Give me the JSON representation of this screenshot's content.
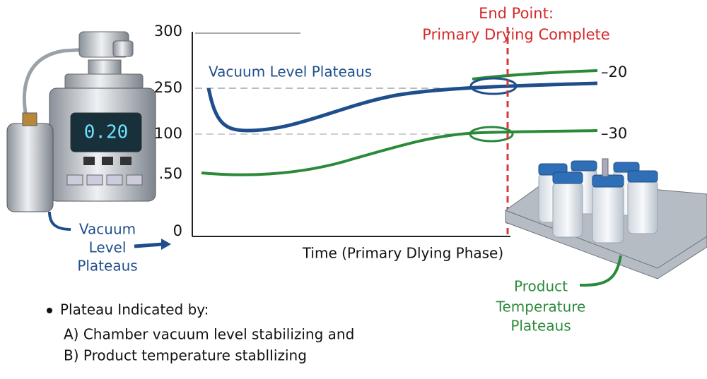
{
  "axis": {
    "y_labels": [
      "300",
      "250",
      "100",
      ".50",
      "0"
    ],
    "x_label": "Time (Primary Dlying Phase)"
  },
  "curves": {
    "vacuum": {
      "label": "Vacuum Level Plateaus",
      "end_label": "–20"
    },
    "temperature": {
      "end_label": "–30"
    }
  },
  "end_point": {
    "lines": [
      "End Point:",
      "Primary Drying Complete"
    ]
  },
  "gauge": {
    "display": "0.20"
  },
  "callouts": {
    "vacuum": [
      "Vacuum",
      "Level",
      "Plateaus"
    ],
    "product": [
      "Product",
      "Temperature",
      "Plateaus"
    ]
  },
  "notes": {
    "bullet": "Plateau Indicated by:",
    "items": [
      "A) Chamber vacuum level stabilizing and",
      "B) Product temperature stablIizing"
    ]
  }
}
